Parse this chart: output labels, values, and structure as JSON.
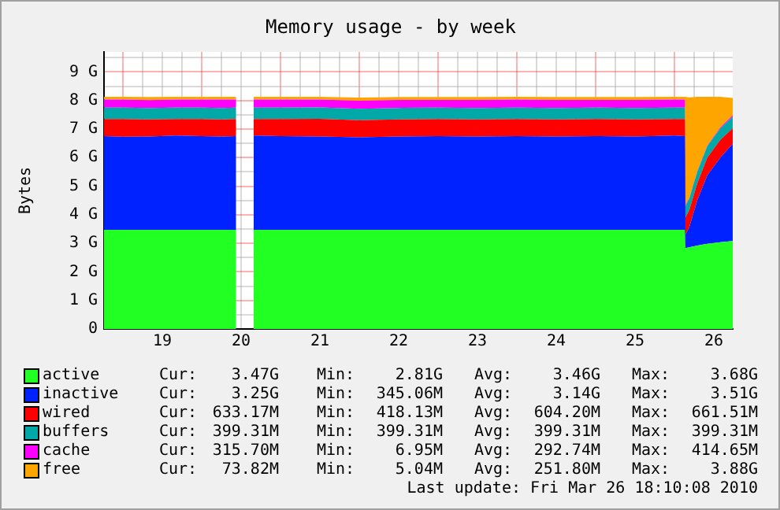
{
  "chart_data": {
    "type": "area",
    "stacked": true,
    "title": "Memory usage - by week",
    "ylabel": "Bytes",
    "x": [
      "2010-03-18T18:15",
      "2010-03-19T00:00",
      "2010-03-19T08:00",
      "2010-03-19T16:00",
      "2010-03-20T00:00",
      "2010-03-20T06:00",
      "2010-03-20T10:30",
      "2010-03-20T13:00",
      "2010-03-20T15:50",
      "2010-03-21T00:00",
      "2010-03-21T12:00",
      "2010-03-22T00:00",
      "2010-03-22T12:00",
      "2010-03-23T00:00",
      "2010-03-23T12:00",
      "2010-03-24T00:00",
      "2010-03-24T12:00",
      "2010-03-25T00:00",
      "2010-03-25T12:00",
      "2010-03-26T00:00",
      "2010-03-26T03:10",
      "2010-03-26T03:20",
      "2010-03-26T04:30",
      "2010-03-26T07:00",
      "2010-03-26T10:00",
      "2010-03-26T14:00",
      "2010-03-26T17:45"
    ],
    "series": [
      {
        "name": "active",
        "color": "#22ff22",
        "values": [
          3.47,
          3.47,
          3.47,
          3.47,
          3.47,
          3.47,
          3.47,
          null,
          3.47,
          3.47,
          3.47,
          3.47,
          3.47,
          3.47,
          3.47,
          3.47,
          3.47,
          3.47,
          3.47,
          3.47,
          3.47,
          2.83,
          2.86,
          2.92,
          2.98,
          3.04,
          3.08
        ]
      },
      {
        "name": "inactive",
        "color": "#0022ff",
        "values": [
          3.28,
          3.26,
          3.27,
          3.3,
          3.28,
          3.27,
          3.28,
          null,
          3.3,
          3.28,
          3.27,
          3.24,
          3.27,
          3.28,
          3.27,
          3.28,
          3.27,
          3.28,
          3.27,
          3.3,
          3.28,
          0.47,
          0.7,
          1.6,
          2.4,
          2.96,
          3.4
        ]
      },
      {
        "name": "wired",
        "color": "#ff0000",
        "values": [
          0.6,
          0.62,
          0.6,
          0.58,
          0.6,
          0.6,
          0.6,
          null,
          0.58,
          0.6,
          0.62,
          0.6,
          0.6,
          0.6,
          0.6,
          0.6,
          0.6,
          0.6,
          0.6,
          0.58,
          0.6,
          0.6,
          0.6,
          0.6,
          0.62,
          0.63,
          0.55
        ]
      },
      {
        "name": "buffers",
        "color": "#00a8a8",
        "values": [
          0.4,
          0.4,
          0.4,
          0.4,
          0.4,
          0.4,
          0.4,
          null,
          0.4,
          0.4,
          0.4,
          0.4,
          0.4,
          0.4,
          0.4,
          0.4,
          0.4,
          0.4,
          0.4,
          0.4,
          0.4,
          0.4,
          0.4,
          0.4,
          0.4,
          0.4,
          0.4
        ]
      },
      {
        "name": "cache",
        "color": "#ff00ff",
        "values": [
          0.28,
          0.28,
          0.27,
          0.28,
          0.28,
          0.29,
          0.28,
          null,
          0.28,
          0.28,
          0.27,
          0.28,
          0.28,
          0.27,
          0.28,
          0.28,
          0.28,
          0.27,
          0.28,
          0.28,
          0.28,
          0.05,
          0.02,
          0.02,
          0.02,
          0.03,
          0.05
        ]
      },
      {
        "name": "free",
        "color": "#ffa500",
        "values": [
          0.1,
          0.1,
          0.11,
          0.1,
          0.1,
          0.1,
          0.1,
          null,
          0.1,
          0.1,
          0.1,
          0.11,
          0.1,
          0.1,
          0.1,
          0.1,
          0.1,
          0.1,
          0.1,
          0.1,
          0.1,
          3.78,
          3.53,
          2.59,
          1.71,
          1.07,
          0.61
        ]
      }
    ],
    "xlim": [
      "2010-03-18T18:15",
      "2010-03-26T17:45"
    ],
    "xticks": [
      {
        "value": "2010-03-19T00:00",
        "label": null
      },
      {
        "value": "2010-03-19T06:00",
        "label": null
      },
      {
        "value": "2010-03-19T12:00",
        "label": "19"
      },
      {
        "value": "2010-03-19T18:00",
        "label": null
      },
      {
        "value": "2010-03-20T00:00",
        "label": null
      },
      {
        "value": "2010-03-20T06:00",
        "label": null
      },
      {
        "value": "2010-03-20T12:00",
        "label": "20"
      },
      {
        "value": "2010-03-20T18:00",
        "label": null
      },
      {
        "value": "2010-03-21T00:00",
        "label": null
      },
      {
        "value": "2010-03-21T06:00",
        "label": null
      },
      {
        "value": "2010-03-21T12:00",
        "label": "21"
      },
      {
        "value": "2010-03-21T18:00",
        "label": null
      },
      {
        "value": "2010-03-22T00:00",
        "label": null
      },
      {
        "value": "2010-03-22T06:00",
        "label": null
      },
      {
        "value": "2010-03-22T12:00",
        "label": "22"
      },
      {
        "value": "2010-03-22T18:00",
        "label": null
      },
      {
        "value": "2010-03-23T00:00",
        "label": null
      },
      {
        "value": "2010-03-23T06:00",
        "label": null
      },
      {
        "value": "2010-03-23T12:00",
        "label": "23"
      },
      {
        "value": "2010-03-23T18:00",
        "label": null
      },
      {
        "value": "2010-03-24T00:00",
        "label": null
      },
      {
        "value": "2010-03-24T06:00",
        "label": null
      },
      {
        "value": "2010-03-24T12:00",
        "label": "24"
      },
      {
        "value": "2010-03-24T18:00",
        "label": null
      },
      {
        "value": "2010-03-25T00:00",
        "label": null
      },
      {
        "value": "2010-03-25T06:00",
        "label": null
      },
      {
        "value": "2010-03-25T12:00",
        "label": "25"
      },
      {
        "value": "2010-03-25T18:00",
        "label": null
      },
      {
        "value": "2010-03-26T00:00",
        "label": null
      },
      {
        "value": "2010-03-26T06:00",
        "label": null
      },
      {
        "value": "2010-03-26T12:00",
        "label": "26"
      }
    ],
    "ylim": [
      0,
      9.7
    ],
    "yticks": [
      0,
      {
        "value": 0.5,
        "label": null
      },
      {
        "value": 1,
        "label": "1 G"
      },
      {
        "value": 1.5,
        "label": null
      },
      {
        "value": 2,
        "label": "2 G"
      },
      {
        "value": 2.5,
        "label": null
      },
      {
        "value": 3,
        "label": "3 G"
      },
      {
        "value": 3.5,
        "label": null
      },
      {
        "value": 4,
        "label": "4 G"
      },
      {
        "value": 4.5,
        "label": null
      },
      {
        "value": 5,
        "label": "5 G"
      },
      {
        "value": 5.5,
        "label": null
      },
      {
        "value": 6,
        "label": "6 G"
      },
      {
        "value": 6.5,
        "label": null
      },
      {
        "value": 7,
        "label": "7 G"
      },
      {
        "value": 7.5,
        "label": null
      },
      {
        "value": 8,
        "label": "8 G"
      },
      {
        "value": 8.5,
        "label": null
      },
      {
        "value": 9,
        "label": "9 G"
      },
      {
        "value": 9.5,
        "label": null
      }
    ],
    "grid": true,
    "legend": "bottom",
    "marker": "none",
    "annotations": [
      "Cur: 3.47G Min: 2.81G Avg: 3.46G Max: 3.68G",
      "Cur: 3.25G Min: 345.06M Avg: 3.14G Max: 3.51G",
      "Cur: 633.17M Min: 418.13M Avg: 604.20M Max: 661.51M",
      "Cur: 399.31M Min: 399.31M Avg: 399.31M Max: 399.31M",
      "Cur: 315.70M Min: 6.95M Avg: 292.74M Max: 414.65M",
      "Cur: 73.82M Min: 5.04M Avg: 251.80M Max: 3.88G",
      "Last update: Fri Mar 26 18:10:08 2010"
    ]
  }
}
